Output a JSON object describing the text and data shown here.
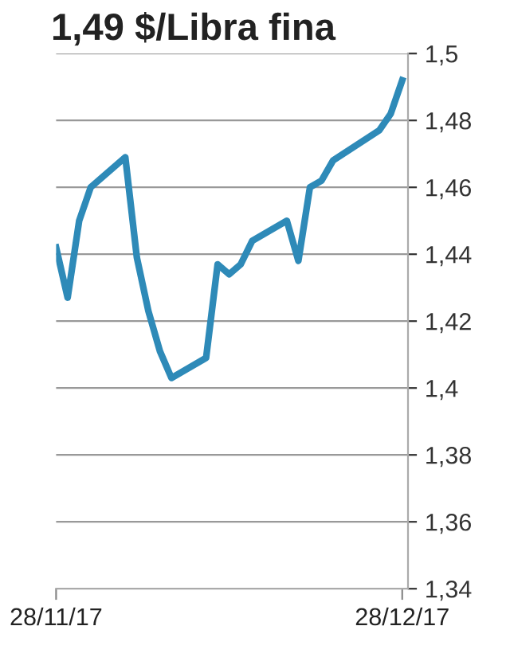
{
  "chart_data": {
    "type": "line",
    "title": "1,49 $/Libra fina",
    "x": [
      "2017-11-28",
      "2017-11-29",
      "2017-11-30",
      "2017-12-01",
      "2017-12-04",
      "2017-12-05",
      "2017-12-06",
      "2017-12-07",
      "2017-12-08",
      "2017-12-11",
      "2017-12-12",
      "2017-12-13",
      "2017-12-14",
      "2017-12-15",
      "2017-12-18",
      "2017-12-19",
      "2017-12-20",
      "2017-12-21",
      "2017-12-22",
      "2017-12-26",
      "2017-12-27",
      "2017-12-28"
    ],
    "series": [
      {
        "color": "#2e8ab8",
        "values": [
          1.442,
          1.427,
          1.45,
          1.46,
          1.469,
          1.439,
          1.423,
          1.411,
          1.403,
          1.409,
          1.437,
          1.434,
          1.437,
          1.444,
          1.45,
          1.438,
          1.46,
          1.462,
          1.468,
          1.477,
          1.482,
          1.492
        ]
      }
    ],
    "xlim": [
      "2017-11-28",
      "2017-12-28T12:00"
    ],
    "xticks": [
      {
        "value": "2017-11-28",
        "label": "28/11/17"
      },
      {
        "value": "2017-12-28",
        "label": "28/12/17"
      }
    ],
    "ylim": [
      1.34,
      1.5
    ],
    "yticks": [
      {
        "value": 1.34,
        "label": "1,34"
      },
      {
        "value": 1.36,
        "label": "1,36"
      },
      {
        "value": 1.38,
        "label": "1,38"
      },
      {
        "value": 1.4,
        "label": "1,4"
      },
      {
        "value": 1.42,
        "label": "1,42"
      },
      {
        "value": 1.44,
        "label": "1,44"
      },
      {
        "value": 1.46,
        "label": "1,46"
      },
      {
        "value": 1.48,
        "label": "1,48"
      },
      {
        "value": 1.5,
        "label": "1,5"
      }
    ],
    "grid": "y",
    "marker": "none",
    "line_style": "solid"
  }
}
